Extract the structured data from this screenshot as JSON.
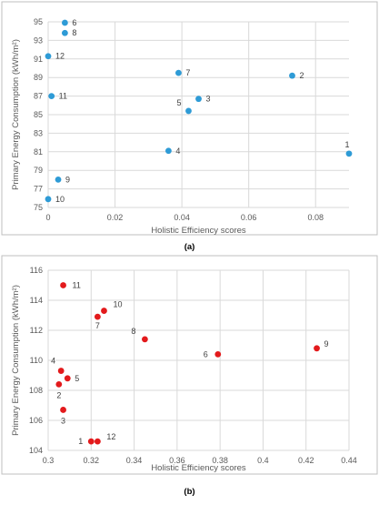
{
  "chart_data": [
    {
      "type": "scatter",
      "caption": "(a)",
      "xlabel": "Holistic Efficiency scores",
      "ylabel": "Primary Energy Consumption (kWh/m²)",
      "xlim": [
        0,
        0.09
      ],
      "ylim": [
        75,
        95
      ],
      "xticks": [
        "0",
        "0.02",
        "0.04",
        "0.06",
        "0.08"
      ],
      "yticks": [
        "75",
        "77",
        "79",
        "81",
        "83",
        "85",
        "87",
        "89",
        "91",
        "93",
        "95"
      ],
      "grid": true,
      "marker_color": "#2e9bd6",
      "points": [
        {
          "label": "1",
          "x": 0.09,
          "y": 80.8
        },
        {
          "label": "2",
          "x": 0.073,
          "y": 89.2
        },
        {
          "label": "3",
          "x": 0.045,
          "y": 86.7
        },
        {
          "label": "4",
          "x": 0.036,
          "y": 81.1
        },
        {
          "label": "5",
          "x": 0.042,
          "y": 85.4
        },
        {
          "label": "6",
          "x": 0.005,
          "y": 94.9
        },
        {
          "label": "7",
          "x": 0.039,
          "y": 89.5
        },
        {
          "label": "8",
          "x": 0.005,
          "y": 93.8
        },
        {
          "label": "9",
          "x": 0.003,
          "y": 78.0
        },
        {
          "label": "10",
          "x": 0.0,
          "y": 75.9
        },
        {
          "label": "11",
          "x": 0.001,
          "y": 87.0
        },
        {
          "label": "12",
          "x": 0.0,
          "y": 91.3
        }
      ]
    },
    {
      "type": "scatter",
      "caption": "(b)",
      "xlabel": "Holistic Efficiency scores",
      "ylabel": "Primary Energy Consumption (kWh/m²)",
      "xlim": [
        0.3,
        0.44
      ],
      "ylim": [
        104,
        116
      ],
      "xticks": [
        "0.3",
        "0.32",
        "0.34",
        "0.36",
        "0.38",
        "0.4",
        "0.42",
        "0.44"
      ],
      "yticks": [
        "104",
        "106",
        "108",
        "110",
        "112",
        "114",
        "116"
      ],
      "grid": true,
      "marker_color": "#e31a1c",
      "points": [
        {
          "label": "1",
          "x": 0.32,
          "y": 104.6
        },
        {
          "label": "2",
          "x": 0.305,
          "y": 108.4
        },
        {
          "label": "3",
          "x": 0.307,
          "y": 106.7
        },
        {
          "label": "4",
          "x": 0.306,
          "y": 109.3
        },
        {
          "label": "5",
          "x": 0.309,
          "y": 108.8
        },
        {
          "label": "6",
          "x": 0.379,
          "y": 110.4
        },
        {
          "label": "7",
          "x": 0.323,
          "y": 112.9
        },
        {
          "label": "8",
          "x": 0.345,
          "y": 111.4
        },
        {
          "label": "9",
          "x": 0.425,
          "y": 110.8
        },
        {
          "label": "10",
          "x": 0.326,
          "y": 113.3
        },
        {
          "label": "11",
          "x": 0.307,
          "y": 115.0
        },
        {
          "label": "12",
          "x": 0.323,
          "y": 104.6
        }
      ]
    }
  ]
}
